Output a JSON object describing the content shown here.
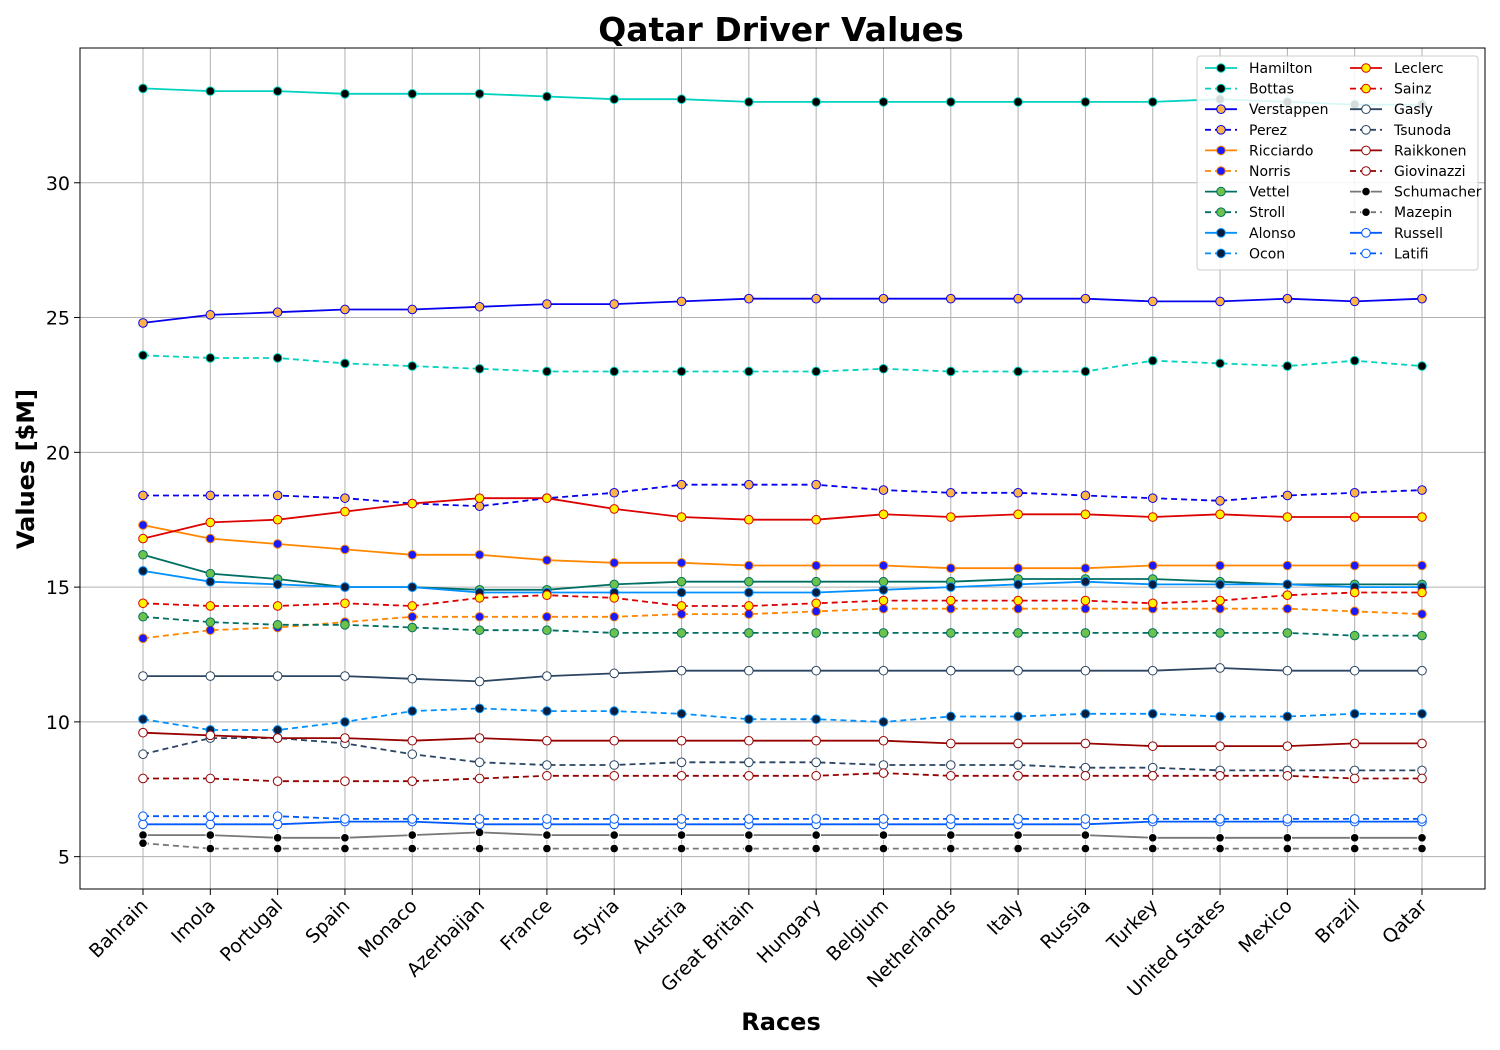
{
  "chart_data": {
    "type": "line",
    "title": "Qatar Driver Values",
    "xlabel": "Races",
    "ylabel": "Values [$M]",
    "ylim": [
      3.8,
      35.0
    ],
    "yticks": [
      5,
      10,
      15,
      20,
      25,
      30
    ],
    "grid": true,
    "legend_position": "top-right",
    "legend_columns": 2,
    "categories": [
      "Bahrain",
      "Imola",
      "Portugal",
      "Spain",
      "Monaco",
      "Azerbaijan",
      "France",
      "Styria",
      "Austria",
      "Great Britain",
      "Hungary",
      "Belgium",
      "Netherlands",
      "Italy",
      "Russia",
      "Turkey",
      "United States",
      "Mexico",
      "Brazil",
      "Qatar"
    ],
    "series": [
      {
        "name": "Hamilton",
        "color": "#00d2be",
        "dash": "solid",
        "marker_fill": "#000000",
        "marker_edge": "#00d2be",
        "values": [
          33.5,
          33.4,
          33.4,
          33.3,
          33.3,
          33.3,
          33.2,
          33.1,
          33.1,
          33.0,
          33.0,
          33.0,
          33.0,
          33.0,
          33.0,
          33.0,
          33.1,
          33.0,
          32.9,
          32.9
        ]
      },
      {
        "name": "Bottas",
        "color": "#00d2be",
        "dash": "dashed",
        "marker_fill": "#000000",
        "marker_edge": "#00d2be",
        "values": [
          23.6,
          23.5,
          23.5,
          23.3,
          23.2,
          23.1,
          23.0,
          23.0,
          23.0,
          23.0,
          23.0,
          23.1,
          23.0,
          23.0,
          23.0,
          23.4,
          23.3,
          23.2,
          23.4,
          23.2
        ]
      },
      {
        "name": "Verstappen",
        "color": "#0600ef",
        "dash": "solid",
        "marker_fill": "#ffb347",
        "marker_edge": "#0600ef",
        "values": [
          24.8,
          25.1,
          25.2,
          25.3,
          25.3,
          25.4,
          25.5,
          25.5,
          25.6,
          25.7,
          25.7,
          25.7,
          25.7,
          25.7,
          25.7,
          25.6,
          25.6,
          25.7,
          25.6,
          25.7
        ]
      },
      {
        "name": "Perez",
        "color": "#0600ef",
        "dash": "dashed",
        "marker_fill": "#ffb347",
        "marker_edge": "#0600ef",
        "values": [
          18.4,
          18.4,
          18.4,
          18.3,
          18.1,
          18.0,
          18.3,
          18.5,
          18.8,
          18.8,
          18.8,
          18.6,
          18.5,
          18.5,
          18.4,
          18.3,
          18.2,
          18.4,
          18.5,
          18.6
        ]
      },
      {
        "name": "Ricciardo",
        "color": "#ff8700",
        "dash": "solid",
        "marker_fill": "#1a1aff",
        "marker_edge": "#ff8700",
        "values": [
          17.3,
          16.8,
          16.6,
          16.4,
          16.2,
          16.2,
          16.0,
          15.9,
          15.9,
          15.8,
          15.8,
          15.8,
          15.7,
          15.7,
          15.7,
          15.8,
          15.8,
          15.8,
          15.8,
          15.8
        ]
      },
      {
        "name": "Norris",
        "color": "#ff8700",
        "dash": "dashed",
        "marker_fill": "#1a1aff",
        "marker_edge": "#ff8700",
        "values": [
          13.1,
          13.4,
          13.5,
          13.7,
          13.9,
          13.9,
          13.9,
          13.9,
          14.0,
          14.0,
          14.1,
          14.2,
          14.2,
          14.2,
          14.2,
          14.2,
          14.2,
          14.2,
          14.1,
          14.0
        ]
      },
      {
        "name": "Vettel",
        "color": "#006f62",
        "dash": "solid",
        "marker_fill": "#6cc24a",
        "marker_edge": "#006f62",
        "values": [
          16.2,
          15.5,
          15.3,
          15.0,
          15.0,
          14.9,
          14.9,
          15.1,
          15.2,
          15.2,
          15.2,
          15.2,
          15.2,
          15.3,
          15.3,
          15.3,
          15.2,
          15.1,
          15.1,
          15.1
        ]
      },
      {
        "name": "Stroll",
        "color": "#006f62",
        "dash": "dashed",
        "marker_fill": "#6cc24a",
        "marker_edge": "#006f62",
        "values": [
          13.9,
          13.7,
          13.6,
          13.6,
          13.5,
          13.4,
          13.4,
          13.3,
          13.3,
          13.3,
          13.3,
          13.3,
          13.3,
          13.3,
          13.3,
          13.3,
          13.3,
          13.3,
          13.2,
          13.2
        ]
      },
      {
        "name": "Alonso",
        "color": "#0090ff",
        "dash": "solid",
        "marker_fill": "#0a1e3c",
        "marker_edge": "#0090ff",
        "values": [
          15.6,
          15.2,
          15.1,
          15.0,
          15.0,
          14.8,
          14.8,
          14.8,
          14.8,
          14.8,
          14.8,
          14.9,
          15.0,
          15.1,
          15.2,
          15.1,
          15.1,
          15.1,
          15.0,
          15.0
        ]
      },
      {
        "name": "Ocon",
        "color": "#0090ff",
        "dash": "dashed",
        "marker_fill": "#0a1e3c",
        "marker_edge": "#0090ff",
        "values": [
          10.1,
          9.7,
          9.7,
          10.0,
          10.4,
          10.5,
          10.4,
          10.4,
          10.3,
          10.1,
          10.1,
          10.0,
          10.2,
          10.2,
          10.3,
          10.3,
          10.2,
          10.2,
          10.3,
          10.3
        ]
      },
      {
        "name": "Leclerc",
        "color": "#dc0000",
        "dash": "solid",
        "marker_fill": "#fff200",
        "marker_edge": "#dc0000",
        "values": [
          16.8,
          17.4,
          17.5,
          17.8,
          18.1,
          18.3,
          18.3,
          17.9,
          17.6,
          17.5,
          17.5,
          17.7,
          17.6,
          17.7,
          17.7,
          17.6,
          17.7,
          17.6,
          17.6,
          17.6
        ]
      },
      {
        "name": "Sainz",
        "color": "#dc0000",
        "dash": "dashed",
        "marker_fill": "#fff200",
        "marker_edge": "#dc0000",
        "values": [
          14.4,
          14.3,
          14.3,
          14.4,
          14.3,
          14.6,
          14.7,
          14.6,
          14.3,
          14.3,
          14.4,
          14.5,
          14.5,
          14.5,
          14.5,
          14.4,
          14.5,
          14.7,
          14.8,
          14.8
        ]
      },
      {
        "name": "Gasly",
        "color": "#2b4562",
        "dash": "solid",
        "marker_fill": "#ffffff",
        "marker_edge": "#2b4562",
        "values": [
          11.7,
          11.7,
          11.7,
          11.7,
          11.6,
          11.5,
          11.7,
          11.8,
          11.9,
          11.9,
          11.9,
          11.9,
          11.9,
          11.9,
          11.9,
          11.9,
          12.0,
          11.9,
          11.9,
          11.9
        ]
      },
      {
        "name": "Tsunoda",
        "color": "#2b4562",
        "dash": "dashed",
        "marker_fill": "#ffffff",
        "marker_edge": "#2b4562",
        "values": [
          8.8,
          9.4,
          9.4,
          9.2,
          8.8,
          8.5,
          8.4,
          8.4,
          8.5,
          8.5,
          8.5,
          8.4,
          8.4,
          8.4,
          8.3,
          8.3,
          8.2,
          8.2,
          8.2,
          8.2
        ]
      },
      {
        "name": "Raikkonen",
        "color": "#960000",
        "dash": "solid",
        "marker_fill": "#ffffff",
        "marker_edge": "#960000",
        "values": [
          9.6,
          9.5,
          9.4,
          9.4,
          9.3,
          9.4,
          9.3,
          9.3,
          9.3,
          9.3,
          9.3,
          9.3,
          9.2,
          9.2,
          9.2,
          9.1,
          9.1,
          9.1,
          9.2,
          9.2
        ]
      },
      {
        "name": "Giovinazzi",
        "color": "#960000",
        "dash": "dashed",
        "marker_fill": "#ffffff",
        "marker_edge": "#960000",
        "values": [
          7.9,
          7.9,
          7.8,
          7.8,
          7.8,
          7.9,
          8.0,
          8.0,
          8.0,
          8.0,
          8.0,
          8.1,
          8.0,
          8.0,
          8.0,
          8.0,
          8.0,
          8.0,
          7.9,
          7.9
        ]
      },
      {
        "name": "Schumacher",
        "color": "#777777",
        "dash": "solid",
        "marker_fill": "#000000",
        "marker_edge": "#ffffff",
        "values": [
          5.8,
          5.8,
          5.7,
          5.7,
          5.8,
          5.9,
          5.8,
          5.8,
          5.8,
          5.8,
          5.8,
          5.8,
          5.8,
          5.8,
          5.8,
          5.7,
          5.7,
          5.7,
          5.7,
          5.7
        ]
      },
      {
        "name": "Mazepin",
        "color": "#777777",
        "dash": "dashed",
        "marker_fill": "#000000",
        "marker_edge": "#ffffff",
        "values": [
          5.5,
          5.3,
          5.3,
          5.3,
          5.3,
          5.3,
          5.3,
          5.3,
          5.3,
          5.3,
          5.3,
          5.3,
          5.3,
          5.3,
          5.3,
          5.3,
          5.3,
          5.3,
          5.3,
          5.3
        ]
      },
      {
        "name": "Russell",
        "color": "#005aff",
        "dash": "solid",
        "marker_fill": "#ffffff",
        "marker_edge": "#005aff",
        "values": [
          6.2,
          6.2,
          6.2,
          6.3,
          6.3,
          6.2,
          6.2,
          6.2,
          6.2,
          6.2,
          6.2,
          6.2,
          6.2,
          6.2,
          6.2,
          6.3,
          6.3,
          6.3,
          6.3,
          6.3
        ]
      },
      {
        "name": "Latifi",
        "color": "#005aff",
        "dash": "dashed",
        "marker_fill": "#ffffff",
        "marker_edge": "#005aff",
        "values": [
          6.5,
          6.5,
          6.5,
          6.4,
          6.4,
          6.4,
          6.4,
          6.4,
          6.4,
          6.4,
          6.4,
          6.4,
          6.4,
          6.4,
          6.4,
          6.4,
          6.4,
          6.4,
          6.4,
          6.4
        ]
      }
    ]
  }
}
